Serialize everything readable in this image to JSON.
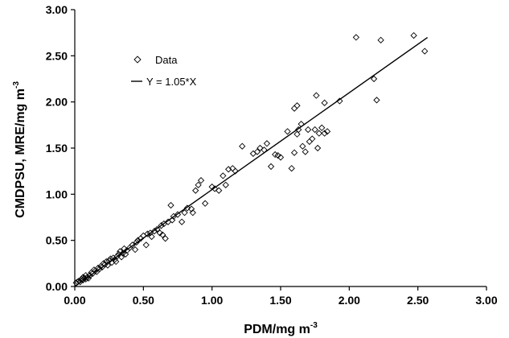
{
  "chart_data": {
    "type": "scatter",
    "xlabel": "PDM/mg m",
    "xlabel_sup": "-3",
    "ylabel": "CMDPSU, MRE/mg m",
    "ylabel_sup": "-3",
    "xlim": [
      0,
      3
    ],
    "ylim": [
      0,
      3
    ],
    "grid": false,
    "legend_position": "top-left",
    "x_ticks": [
      "0.00",
      "0.50",
      "1.00",
      "1.50",
      "2.00",
      "2.50",
      "3.00"
    ],
    "y_ticks": [
      "0.00",
      "0.50",
      "1.00",
      "1.50",
      "2.00",
      "2.50",
      "3.00"
    ],
    "series": [
      {
        "name": "Data",
        "marker": "diamond",
        "points": [
          [
            0.01,
            0.04
          ],
          [
            0.02,
            0.05
          ],
          [
            0.03,
            0.06
          ],
          [
            0.04,
            0.05
          ],
          [
            0.05,
            0.08
          ],
          [
            0.06,
            0.07
          ],
          [
            0.06,
            0.1
          ],
          [
            0.07,
            0.09
          ],
          [
            0.08,
            0.08
          ],
          [
            0.08,
            0.12
          ],
          [
            0.09,
            0.1
          ],
          [
            0.1,
            0.09
          ],
          [
            0.11,
            0.12
          ],
          [
            0.12,
            0.15
          ],
          [
            0.13,
            0.14
          ],
          [
            0.14,
            0.18
          ],
          [
            0.15,
            0.17
          ],
          [
            0.16,
            0.16
          ],
          [
            0.17,
            0.2
          ],
          [
            0.18,
            0.19
          ],
          [
            0.19,
            0.22
          ],
          [
            0.2,
            0.21
          ],
          [
            0.21,
            0.25
          ],
          [
            0.22,
            0.24
          ],
          [
            0.23,
            0.27
          ],
          [
            0.24,
            0.23
          ],
          [
            0.25,
            0.28
          ],
          [
            0.26,
            0.3
          ],
          [
            0.27,
            0.26
          ],
          [
            0.28,
            0.31
          ],
          [
            0.29,
            0.29
          ],
          [
            0.3,
            0.27
          ],
          [
            0.31,
            0.33
          ],
          [
            0.32,
            0.35
          ],
          [
            0.33,
            0.38
          ],
          [
            0.34,
            0.32
          ],
          [
            0.35,
            0.36
          ],
          [
            0.36,
            0.41
          ],
          [
            0.37,
            0.35
          ],
          [
            0.38,
            0.39
          ],
          [
            0.4,
            0.42
          ],
          [
            0.42,
            0.45
          ],
          [
            0.44,
            0.4
          ],
          [
            0.45,
            0.48
          ],
          [
            0.46,
            0.5
          ],
          [
            0.48,
            0.52
          ],
          [
            0.5,
            0.55
          ],
          [
            0.52,
            0.45
          ],
          [
            0.53,
            0.57
          ],
          [
            0.55,
            0.58
          ],
          [
            0.56,
            0.54
          ],
          [
            0.58,
            0.6
          ],
          [
            0.6,
            0.62
          ],
          [
            0.62,
            0.58
          ],
          [
            0.63,
            0.66
          ],
          [
            0.64,
            0.56
          ],
          [
            0.65,
            0.68
          ],
          [
            0.66,
            0.52
          ],
          [
            0.68,
            0.7
          ],
          [
            0.7,
            0.88
          ],
          [
            0.71,
            0.72
          ],
          [
            0.72,
            0.76
          ],
          [
            0.75,
            0.78
          ],
          [
            0.78,
            0.7
          ],
          [
            0.8,
            0.8
          ],
          [
            0.82,
            0.85
          ],
          [
            0.85,
            0.84
          ],
          [
            0.86,
            0.8
          ],
          [
            0.88,
            1.04
          ],
          [
            0.9,
            1.1
          ],
          [
            0.92,
            1.15
          ],
          [
            0.95,
            0.9
          ],
          [
            1.0,
            1.08
          ],
          [
            1.02,
            1.06
          ],
          [
            1.05,
            1.04
          ],
          [
            1.08,
            1.2
          ],
          [
            1.1,
            1.1
          ],
          [
            1.12,
            1.27
          ],
          [
            1.15,
            1.28
          ],
          [
            1.17,
            1.25
          ],
          [
            1.22,
            1.52
          ],
          [
            1.3,
            1.44
          ],
          [
            1.33,
            1.46
          ],
          [
            1.35,
            1.5
          ],
          [
            1.38,
            1.48
          ],
          [
            1.4,
            1.55
          ],
          [
            1.43,
            1.3
          ],
          [
            1.46,
            1.43
          ],
          [
            1.48,
            1.42
          ],
          [
            1.5,
            1.4
          ],
          [
            1.55,
            1.68
          ],
          [
            1.58,
            1.28
          ],
          [
            1.6,
            1.45
          ],
          [
            1.62,
            1.65
          ],
          [
            1.63,
            1.7
          ],
          [
            1.65,
            1.76
          ],
          [
            1.66,
            1.52
          ],
          [
            1.68,
            1.46
          ],
          [
            1.7,
            1.7
          ],
          [
            1.71,
            1.57
          ],
          [
            1.73,
            1.6
          ],
          [
            1.75,
            1.7
          ],
          [
            1.77,
            1.5
          ],
          [
            1.78,
            1.66
          ],
          [
            1.8,
            1.72
          ],
          [
            1.82,
            1.66
          ],
          [
            1.84,
            1.68
          ],
          [
            1.6,
            1.93
          ],
          [
            1.62,
            1.96
          ],
          [
            1.76,
            2.07
          ],
          [
            1.82,
            1.99
          ],
          [
            1.93,
            2.01
          ],
          [
            2.05,
            2.7
          ],
          [
            2.18,
            2.25
          ],
          [
            2.2,
            2.02
          ],
          [
            2.23,
            2.67
          ],
          [
            2.47,
            2.72
          ],
          [
            2.55,
            2.55
          ]
        ]
      },
      {
        "name": "Y = 1.05*X",
        "type": "line",
        "slope": 1.05,
        "x_range": [
          0,
          2.57
        ]
      }
    ]
  }
}
